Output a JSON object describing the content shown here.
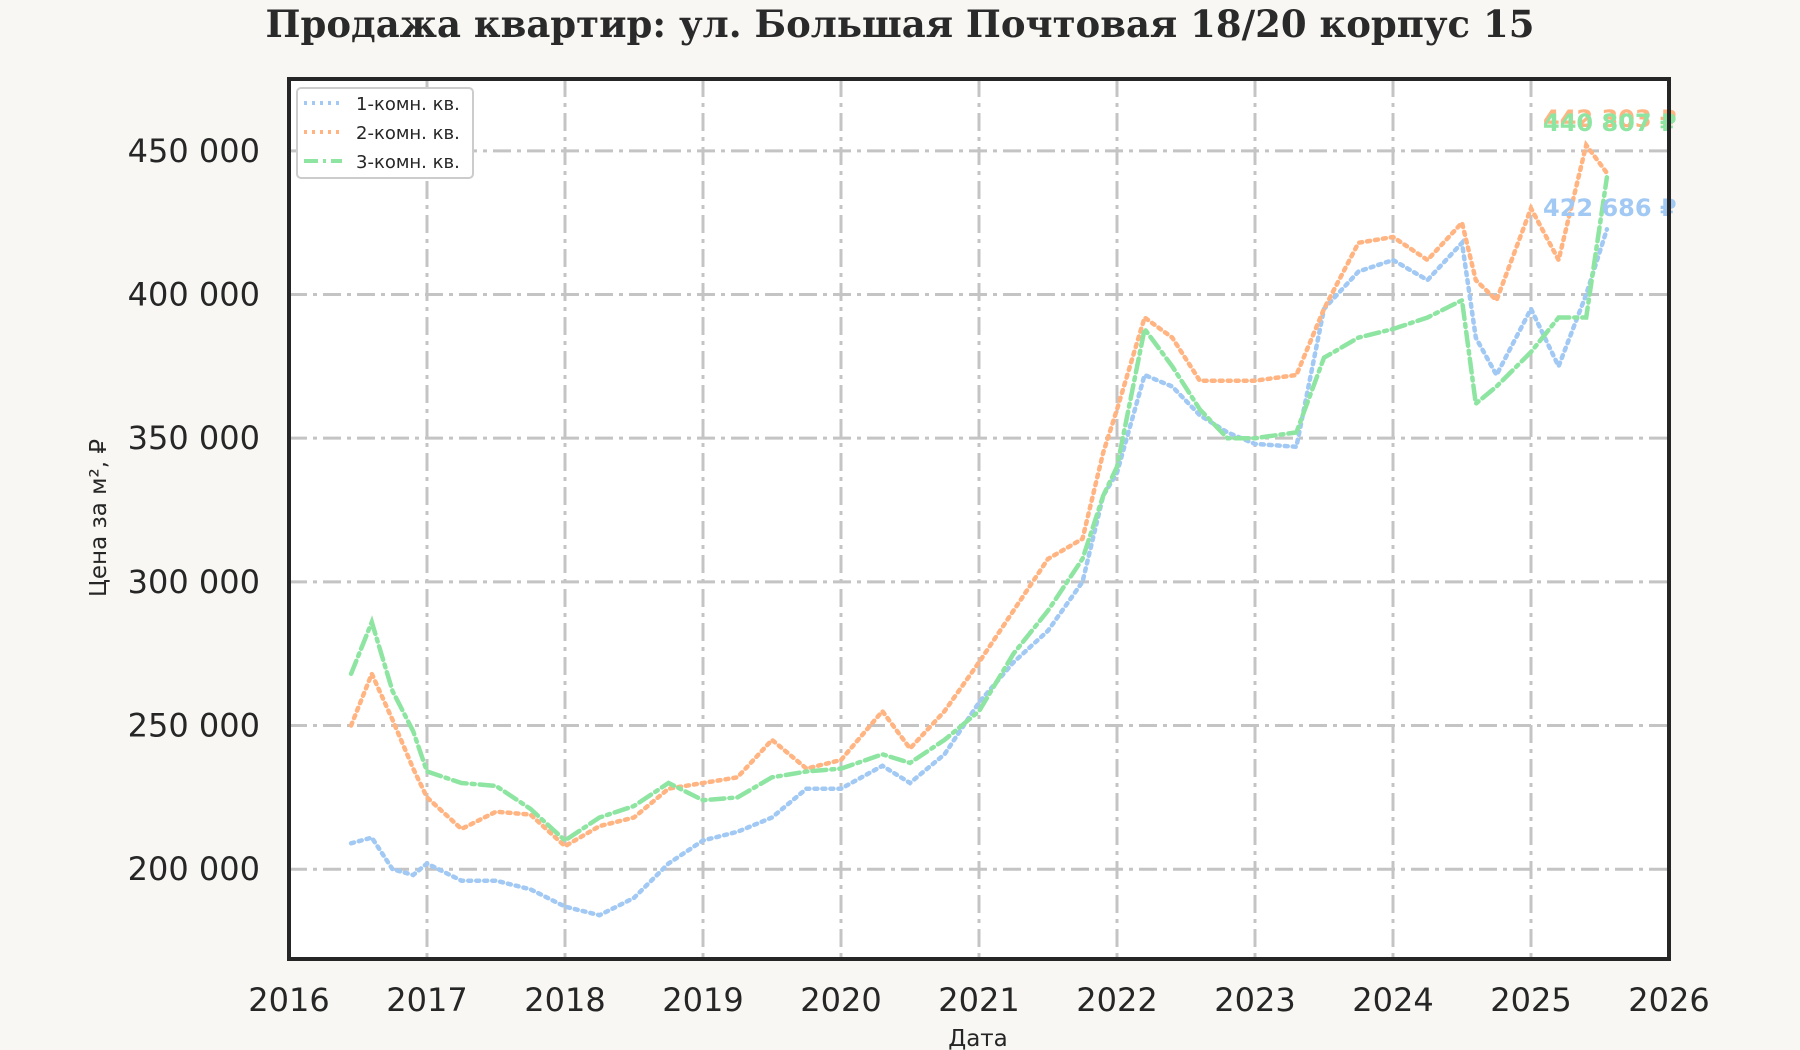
{
  "title": "Продажа квартир: ул. Большая Почтовая 18/20 корпус 15",
  "chart_data": {
    "type": "line",
    "title": "Продажа квартир: ул. Большая Почтовая 18/20 корпус 15",
    "xlabel": "Дата",
    "ylabel": "Цена за м², ₽",
    "xlim": [
      2016,
      2026
    ],
    "ylim": [
      168750,
      475000
    ],
    "x_ticks": [
      "2016",
      "2017",
      "2018",
      "2019",
      "2020",
      "2021",
      "2022",
      "2023",
      "2024",
      "2025",
      "2026"
    ],
    "y_ticks": [
      {
        "value": 200000,
        "label": "200 000"
      },
      {
        "value": 250000,
        "label": "250 000"
      },
      {
        "value": 300000,
        "label": "300 000"
      },
      {
        "value": 350000,
        "label": "350 000"
      },
      {
        "value": 400000,
        "label": "400 000"
      },
      {
        "value": 450000,
        "label": "450 000"
      }
    ],
    "grid": true,
    "legend_position": "upper left",
    "x": [
      2016.45,
      2016.6,
      2016.75,
      2016.9,
      2017.0,
      2017.25,
      2017.5,
      2017.75,
      2018.0,
      2018.25,
      2018.5,
      2018.75,
      2019.0,
      2019.25,
      2019.5,
      2019.75,
      2020.0,
      2020.3,
      2020.5,
      2020.75,
      2021.0,
      2021.25,
      2021.5,
      2021.75,
      2021.9,
      2022.0,
      2022.2,
      2022.4,
      2022.6,
      2022.8,
      2023.0,
      2023.3,
      2023.5,
      2023.75,
      2024.0,
      2024.25,
      2024.5,
      2024.6,
      2024.75,
      2025.0,
      2025.2,
      2025.4,
      2025.55
    ],
    "series": [
      {
        "name": "1-комн. кв.",
        "color": "#a1c9f4",
        "style": "dotted",
        "values": [
          209000,
          211000,
          200000,
          198000,
          202000,
          196000,
          196000,
          193000,
          187000,
          184000,
          190000,
          202000,
          210000,
          213000,
          218000,
          228000,
          228000,
          236000,
          230000,
          240000,
          258000,
          272000,
          283000,
          300000,
          330000,
          338000,
          372000,
          368000,
          358000,
          352000,
          348000,
          347000,
          395000,
          408000,
          412000,
          405000,
          418000,
          385000,
          372000,
          395000,
          375000,
          400000,
          422686
        ]
      },
      {
        "name": "2-комн. кв.",
        "color": "#ffb482",
        "style": "dotted",
        "values": [
          250000,
          268000,
          252000,
          235000,
          225000,
          214000,
          220000,
          219000,
          208000,
          215000,
          218000,
          228000,
          230000,
          232000,
          245000,
          235000,
          238000,
          255000,
          242000,
          255000,
          272000,
          290000,
          308000,
          315000,
          345000,
          360000,
          392000,
          385000,
          370000,
          370000,
          370000,
          372000,
          395000,
          418000,
          420000,
          412000,
          425000,
          405000,
          398000,
          430000,
          412000,
          452000,
          442303
        ]
      },
      {
        "name": "3-комн. кв.",
        "color": "#8de5a1",
        "style": "dashdot",
        "values": [
          268000,
          286000,
          262000,
          248000,
          234000,
          230000,
          229000,
          221000,
          210000,
          218000,
          222000,
          230000,
          224000,
          225000,
          232000,
          234000,
          235000,
          240000,
          237000,
          245000,
          255000,
          275000,
          290000,
          308000,
          330000,
          340000,
          388000,
          375000,
          360000,
          350000,
          350000,
          352000,
          378000,
          385000,
          388000,
          392000,
          398000,
          362000,
          368000,
          380000,
          392000,
          392000,
          440807
        ]
      }
    ],
    "annotations": [
      {
        "text": "442 303 ₽",
        "series": "2-комн. кв.",
        "value": 442303
      },
      {
        "text": "440 807 ₽",
        "series": "3-комн. кв.",
        "value": 440807
      },
      {
        "text": "422 686 ₽",
        "series": "1-комн. кв.",
        "value": 422686
      }
    ]
  }
}
